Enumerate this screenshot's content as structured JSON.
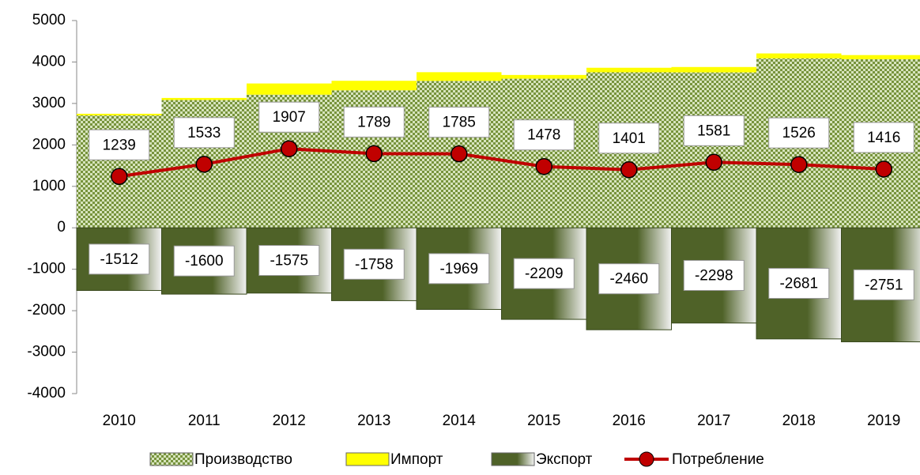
{
  "chart_data": {
    "type": "bar",
    "stacked": true,
    "categories": [
      "2010",
      "2011",
      "2012",
      "2013",
      "2014",
      "2015",
      "2016",
      "2017",
      "2018",
      "2019"
    ],
    "series": [
      {
        "name": "Производство",
        "color": "#7a9a3a",
        "values": [
          2711,
          3083,
          3212,
          3317,
          3544,
          3597,
          3751,
          3749,
          4087,
          4067
        ]
      },
      {
        "name": "Импорт",
        "color": "#ffff00",
        "values": [
          40,
          50,
          270,
          230,
          210,
          90,
          110,
          130,
          120,
          100
        ]
      },
      {
        "name": "Экспорт",
        "color": "#4f6228",
        "values": [
          -1512,
          -1600,
          -1575,
          -1758,
          -1969,
          -2209,
          -2460,
          -2298,
          -2681,
          -2751
        ]
      },
      {
        "name": "Потребление",
        "type": "line",
        "color": "#c00000",
        "values": [
          1239,
          1533,
          1907,
          1789,
          1785,
          1478,
          1401,
          1581,
          1526,
          1416
        ]
      }
    ],
    "ylim": [
      -4000,
      5000
    ],
    "yticks": [
      -4000,
      -3000,
      -2000,
      -1000,
      0,
      1000,
      2000,
      3000,
      4000,
      5000
    ],
    "grid": false,
    "legend": "bottom"
  }
}
